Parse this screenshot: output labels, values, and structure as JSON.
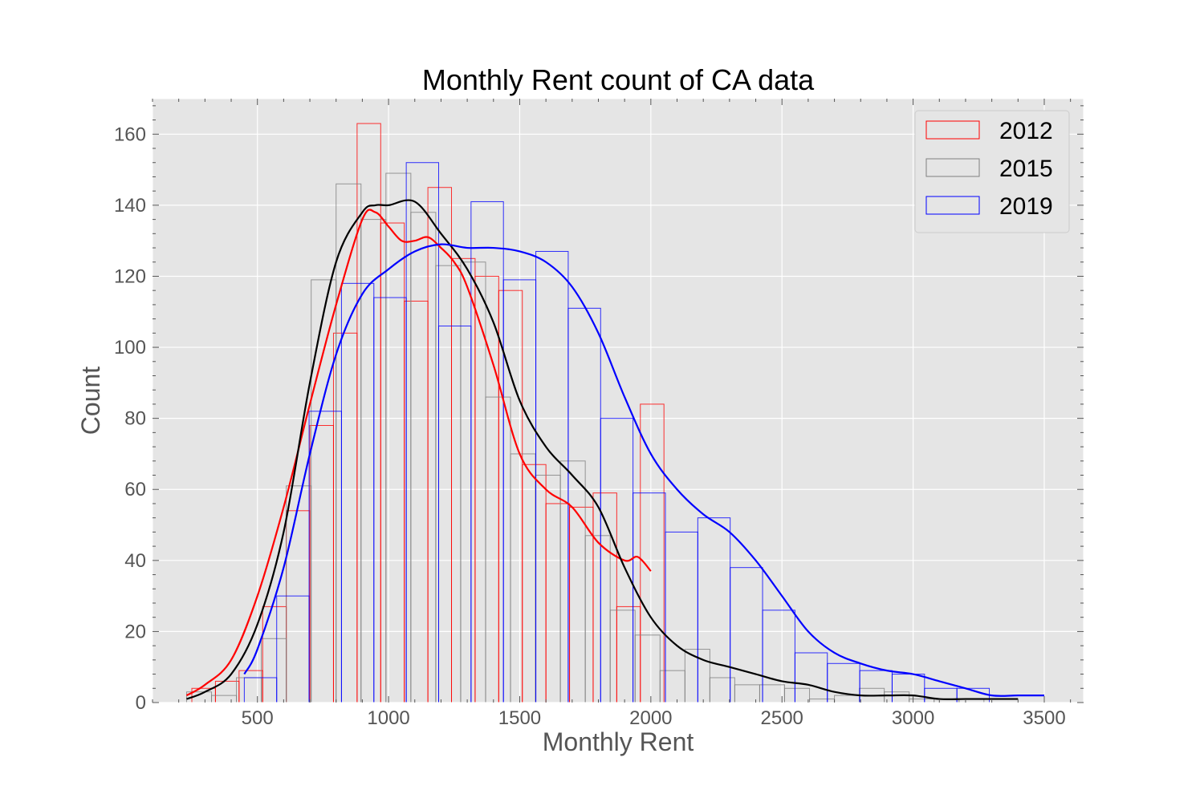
{
  "chart_data": {
    "type": "bar",
    "title": "Monthly Rent count of CA  data",
    "xlabel": "Monthly Rent",
    "ylabel": "Count",
    "xlim": [
      100,
      3650
    ],
    "ylim": [
      0,
      170
    ],
    "xticks": [
      500,
      1000,
      1500,
      2000,
      2500,
      3000,
      3500
    ],
    "yticks": [
      0,
      20,
      40,
      60,
      80,
      100,
      120,
      140,
      160
    ],
    "grid": true,
    "legend_position": "top-right",
    "series": [
      {
        "name": "2012",
        "color": "#ff0000",
        "bin_start": 250,
        "bin_width": 90,
        "counts": [
          4,
          6,
          9,
          27,
          54,
          78,
          104,
          163,
          135,
          113,
          145,
          125,
          120,
          116,
          67,
          56,
          55,
          59,
          27,
          84
        ],
        "kde_x": [
          230,
          300,
          400,
          500,
          600,
          700,
          800,
          900,
          950,
          1000,
          1050,
          1100,
          1150,
          1200,
          1250,
          1300,
          1400,
          1500,
          1600,
          1700,
          1800,
          1900,
          1950,
          2000
        ],
        "kde_y": [
          2,
          5,
          12,
          30,
          55,
          84,
          112,
          136,
          138,
          134,
          130,
          130,
          131,
          128,
          124,
          117,
          95,
          70,
          60,
          55,
          45,
          40,
          41,
          37
        ]
      },
      {
        "name": "2015",
        "color": "#808080",
        "bin_start": 230,
        "bin_width": 95,
        "counts": [
          3,
          2,
          7,
          18,
          61,
          119,
          146,
          136,
          149,
          138,
          123,
          124,
          86,
          70,
          64,
          68,
          47,
          26,
          19,
          9,
          15,
          7,
          5,
          5,
          4,
          1,
          2,
          4,
          3,
          1,
          1,
          1
        ],
        "kde_x": [
          230,
          300,
          400,
          500,
          600,
          700,
          800,
          900,
          950,
          1000,
          1100,
          1200,
          1300,
          1400,
          1500,
          1600,
          1700,
          1800,
          1900,
          2000,
          2100,
          2200,
          2300,
          2400,
          2500,
          2600,
          2700,
          2800,
          2900,
          3000,
          3100,
          3200,
          3300,
          3400
        ],
        "kde_y": [
          1,
          3,
          8,
          22,
          48,
          90,
          124,
          138,
          140,
          140,
          141,
          132,
          122,
          107,
          85,
          72,
          64,
          55,
          38,
          24,
          16,
          12,
          10,
          8,
          6,
          5,
          3,
          2,
          2,
          2,
          1,
          1,
          1,
          1
        ]
      },
      {
        "name": "2019",
        "color": "#0000ff",
        "bin_start": 450,
        "bin_width": 123.5,
        "counts": [
          7,
          30,
          82,
          118,
          114,
          152,
          106,
          141,
          119,
          127,
          111,
          80,
          59,
          48,
          52,
          38,
          26,
          14,
          11,
          9,
          8,
          4,
          4
        ],
        "kde_x": [
          450,
          500,
          600,
          700,
          800,
          900,
          1000,
          1100,
          1200,
          1300,
          1400,
          1500,
          1600,
          1700,
          1800,
          1900,
          2000,
          2100,
          2200,
          2300,
          2400,
          2500,
          2600,
          2700,
          2800,
          2900,
          3000,
          3100,
          3200,
          3300,
          3400,
          3500
        ],
        "kde_y": [
          8,
          15,
          38,
          70,
          98,
          115,
          122,
          127,
          129,
          128,
          128,
          127,
          124,
          117,
          104,
          86,
          70,
          60,
          53,
          48,
          40,
          30,
          20,
          14,
          11,
          9,
          8,
          6,
          4,
          2,
          2,
          2
        ]
      }
    ]
  }
}
